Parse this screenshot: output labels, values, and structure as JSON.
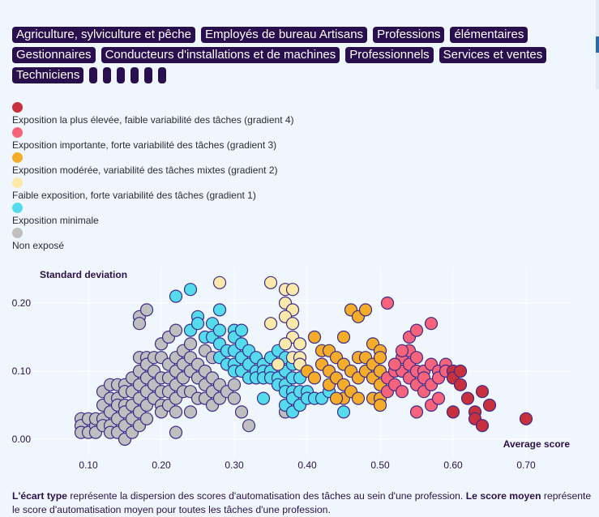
{
  "filters": [
    "Agriculture, sylviculture et pêche",
    "Employés de bureau Artisans",
    "Professions",
    "élémentaires",
    "Gestionnaires",
    "Conducteurs d'installations et de machines",
    "Professionnels",
    "Services et ventes",
    "Techniciens",
    "",
    "",
    "",
    "",
    "",
    ""
  ],
  "legend": [
    {
      "label": "Exposition la plus élevée, faible variabilité des tâches (gradient 4)",
      "color": "#c9303e"
    },
    {
      "label": "Exposition importante, forte variabilité des tâches (gradient 3)",
      "color": "#f7637a"
    },
    {
      "label": "Exposition modérée, variabilité des tâches mixtes (gradient 2)",
      "color": "#f5ac29"
    },
    {
      "label": "Faible exposition, forte variabilité des tâches (gradient 1)",
      "color": "#fde9a9"
    },
    {
      "label": "Exposition minimale",
      "color": "#55dcec"
    },
    {
      "label": "Non exposé",
      "color": "#bfbfbf"
    }
  ],
  "note": {
    "part1_bold": "L'écart type",
    "part1": " représente la dispersion des scores d'automatisation des tâches au sein d'une profession. ",
    "part2_bold": "Le score moyen",
    "part2": " représente le score d'automatisation moyen pour toutes les tâches d'une profession."
  },
  "chart_data": {
    "type": "scatter",
    "title": "",
    "xlabel": "Average score",
    "ylabel": "Standard deviation",
    "xlim": [
      0.03,
      0.76
    ],
    "ylim": [
      -0.02,
      0.25
    ],
    "xticks": [
      0.1,
      0.2,
      0.3,
      0.4,
      0.5,
      0.6,
      0.7
    ],
    "xtick_labels": [
      "0.10",
      "0.20",
      "0.30",
      "0.40",
      "0.50",
      "0.60",
      "0.70"
    ],
    "yticks": [
      0.0,
      0.1,
      0.2
    ],
    "ytick_labels": [
      "0.00",
      "0.10",
      "0.20"
    ],
    "grid": true,
    "legend_position": "top-left-above",
    "series": [
      {
        "name": "Non exposé",
        "color": "#bfbfbf",
        "points": [
          [
            0.09,
            0.03
          ],
          [
            0.09,
            0.02
          ],
          [
            0.09,
            0.01
          ],
          [
            0.1,
            0.03
          ],
          [
            0.1,
            0.01
          ],
          [
            0.11,
            0.02
          ],
          [
            0.11,
            0.03
          ],
          [
            0.11,
            0.01
          ],
          [
            0.12,
            0.03
          ],
          [
            0.12,
            0.02
          ],
          [
            0.12,
            0.05
          ],
          [
            0.12,
            0.07
          ],
          [
            0.13,
            0.08
          ],
          [
            0.13,
            0.06
          ],
          [
            0.13,
            0.04
          ],
          [
            0.13,
            0.02
          ],
          [
            0.13,
            0.01
          ],
          [
            0.14,
            0.08
          ],
          [
            0.14,
            0.06
          ],
          [
            0.14,
            0.05
          ],
          [
            0.14,
            0.03
          ],
          [
            0.14,
            0.01
          ],
          [
            0.15,
            0.08
          ],
          [
            0.15,
            0.07
          ],
          [
            0.15,
            0.05
          ],
          [
            0.15,
            0.04
          ],
          [
            0.15,
            0.02
          ],
          [
            0.15,
            0.0
          ],
          [
            0.16,
            0.09
          ],
          [
            0.16,
            0.07
          ],
          [
            0.16,
            0.05
          ],
          [
            0.16,
            0.03
          ],
          [
            0.16,
            0.01
          ],
          [
            0.17,
            0.18
          ],
          [
            0.17,
            0.17
          ],
          [
            0.17,
            0.12
          ],
          [
            0.17,
            0.1
          ],
          [
            0.17,
            0.08
          ],
          [
            0.17,
            0.06
          ],
          [
            0.17,
            0.04
          ],
          [
            0.17,
            0.02
          ],
          [
            0.18,
            0.19
          ],
          [
            0.18,
            0.12
          ],
          [
            0.18,
            0.11
          ],
          [
            0.18,
            0.09
          ],
          [
            0.18,
            0.07
          ],
          [
            0.18,
            0.05
          ],
          [
            0.18,
            0.03
          ],
          [
            0.19,
            0.12
          ],
          [
            0.19,
            0.1
          ],
          [
            0.19,
            0.08
          ],
          [
            0.19,
            0.06
          ],
          [
            0.2,
            0.14
          ],
          [
            0.2,
            0.12
          ],
          [
            0.2,
            0.09
          ],
          [
            0.2,
            0.07
          ],
          [
            0.2,
            0.05
          ],
          [
            0.2,
            0.04
          ],
          [
            0.21,
            0.15
          ],
          [
            0.21,
            0.11
          ],
          [
            0.21,
            0.09
          ],
          [
            0.21,
            0.07
          ],
          [
            0.21,
            0.05
          ],
          [
            0.22,
            0.16
          ],
          [
            0.22,
            0.12
          ],
          [
            0.22,
            0.1
          ],
          [
            0.22,
            0.08
          ],
          [
            0.22,
            0.06
          ],
          [
            0.22,
            0.04
          ],
          [
            0.22,
            0.01
          ],
          [
            0.23,
            0.13
          ],
          [
            0.23,
            0.11
          ],
          [
            0.23,
            0.09
          ],
          [
            0.23,
            0.07
          ],
          [
            0.24,
            0.14
          ],
          [
            0.24,
            0.12
          ],
          [
            0.24,
            0.1
          ],
          [
            0.24,
            0.07
          ],
          [
            0.24,
            0.04
          ],
          [
            0.25,
            0.11
          ],
          [
            0.25,
            0.09
          ],
          [
            0.25,
            0.06
          ],
          [
            0.26,
            0.13
          ],
          [
            0.26,
            0.1
          ],
          [
            0.26,
            0.08
          ],
          [
            0.26,
            0.06
          ],
          [
            0.27,
            0.12
          ],
          [
            0.27,
            0.09
          ],
          [
            0.27,
            0.07
          ],
          [
            0.27,
            0.05
          ],
          [
            0.28,
            0.08
          ],
          [
            0.28,
            0.06
          ],
          [
            0.29,
            0.07
          ],
          [
            0.3,
            0.06
          ],
          [
            0.3,
            0.08
          ],
          [
            0.31,
            0.04
          ],
          [
            0.32,
            0.02
          ],
          [
            0.37,
            0.04
          ]
        ]
      },
      {
        "name": "Exposition minimale",
        "color": "#55dcec",
        "points": [
          [
            0.22,
            0.21
          ],
          [
            0.24,
            0.22
          ],
          [
            0.24,
            0.16
          ],
          [
            0.25,
            0.18
          ],
          [
            0.25,
            0.17
          ],
          [
            0.26,
            0.15
          ],
          [
            0.27,
            0.17
          ],
          [
            0.27,
            0.15
          ],
          [
            0.28,
            0.19
          ],
          [
            0.28,
            0.16
          ],
          [
            0.28,
            0.14
          ],
          [
            0.28,
            0.12
          ],
          [
            0.29,
            0.13
          ],
          [
            0.29,
            0.11
          ],
          [
            0.3,
            0.16
          ],
          [
            0.3,
            0.15
          ],
          [
            0.3,
            0.13
          ],
          [
            0.3,
            0.11
          ],
          [
            0.3,
            0.1
          ],
          [
            0.31,
            0.16
          ],
          [
            0.31,
            0.14
          ],
          [
            0.31,
            0.12
          ],
          [
            0.31,
            0.1
          ],
          [
            0.32,
            0.13
          ],
          [
            0.32,
            0.11
          ],
          [
            0.32,
            0.09
          ],
          [
            0.33,
            0.12
          ],
          [
            0.33,
            0.1
          ],
          [
            0.33,
            0.09
          ],
          [
            0.34,
            0.11
          ],
          [
            0.34,
            0.1
          ],
          [
            0.34,
            0.09
          ],
          [
            0.34,
            0.06
          ],
          [
            0.35,
            0.12
          ],
          [
            0.35,
            0.1
          ],
          [
            0.35,
            0.09
          ],
          [
            0.36,
            0.13
          ],
          [
            0.36,
            0.11
          ],
          [
            0.36,
            0.09
          ],
          [
            0.36,
            0.08
          ],
          [
            0.37,
            0.12
          ],
          [
            0.37,
            0.1
          ],
          [
            0.37,
            0.08
          ],
          [
            0.37,
            0.07
          ],
          [
            0.37,
            0.05
          ],
          [
            0.38,
            0.11
          ],
          [
            0.38,
            0.09
          ],
          [
            0.38,
            0.07
          ],
          [
            0.38,
            0.06
          ],
          [
            0.38,
            0.04
          ],
          [
            0.39,
            0.09
          ],
          [
            0.39,
            0.07
          ],
          [
            0.39,
            0.05
          ],
          [
            0.4,
            0.07
          ],
          [
            0.4,
            0.06
          ],
          [
            0.41,
            0.06
          ],
          [
            0.42,
            0.06
          ],
          [
            0.43,
            0.07
          ],
          [
            0.45,
            0.04
          ]
        ]
      },
      {
        "name": "Faible exposition",
        "color": "#fde9a9",
        "points": [
          [
            0.28,
            0.23
          ],
          [
            0.35,
            0.23
          ],
          [
            0.37,
            0.22
          ],
          [
            0.38,
            0.22
          ],
          [
            0.37,
            0.2
          ],
          [
            0.38,
            0.19
          ],
          [
            0.37,
            0.18
          ],
          [
            0.38,
            0.17
          ],
          [
            0.35,
            0.17
          ],
          [
            0.38,
            0.15
          ],
          [
            0.37,
            0.14
          ],
          [
            0.39,
            0.14
          ],
          [
            0.38,
            0.12
          ],
          [
            0.39,
            0.12
          ],
          [
            0.36,
            0.11
          ],
          [
            0.39,
            0.11
          ]
        ]
      },
      {
        "name": "Exposition modérée",
        "color": "#f5ac29",
        "points": [
          [
            0.4,
            0.1
          ],
          [
            0.41,
            0.15
          ],
          [
            0.41,
            0.09
          ],
          [
            0.42,
            0.13
          ],
          [
            0.42,
            0.11
          ],
          [
            0.43,
            0.13
          ],
          [
            0.43,
            0.1
          ],
          [
            0.43,
            0.08
          ],
          [
            0.44,
            0.12
          ],
          [
            0.44,
            0.09
          ],
          [
            0.45,
            0.15
          ],
          [
            0.45,
            0.11
          ],
          [
            0.45,
            0.08
          ],
          [
            0.45,
            0.06
          ],
          [
            0.46,
            0.19
          ],
          [
            0.46,
            0.1
          ],
          [
            0.46,
            0.07
          ],
          [
            0.47,
            0.18
          ],
          [
            0.47,
            0.12
          ],
          [
            0.47,
            0.09
          ],
          [
            0.47,
            0.06
          ],
          [
            0.48,
            0.19
          ],
          [
            0.48,
            0.12
          ],
          [
            0.48,
            0.1
          ],
          [
            0.49,
            0.14
          ],
          [
            0.49,
            0.11
          ],
          [
            0.49,
            0.09
          ],
          [
            0.49,
            0.06
          ],
          [
            0.5,
            0.13
          ],
          [
            0.5,
            0.12
          ],
          [
            0.5,
            0.1
          ],
          [
            0.5,
            0.08
          ],
          [
            0.5,
            0.06
          ],
          [
            0.5,
            0.05
          ],
          [
            0.44,
            0.06
          ]
        ]
      },
      {
        "name": "Exposition importante",
        "color": "#f7637a",
        "points": [
          [
            0.51,
            0.2
          ],
          [
            0.51,
            0.09
          ],
          [
            0.51,
            0.07
          ],
          [
            0.52,
            0.1
          ],
          [
            0.52,
            0.08
          ],
          [
            0.53,
            0.12
          ],
          [
            0.53,
            0.1
          ],
          [
            0.53,
            0.07
          ],
          [
            0.54,
            0.15
          ],
          [
            0.54,
            0.13
          ],
          [
            0.54,
            0.11
          ],
          [
            0.54,
            0.09
          ],
          [
            0.55,
            0.16
          ],
          [
            0.55,
            0.12
          ],
          [
            0.55,
            0.1
          ],
          [
            0.55,
            0.08
          ],
          [
            0.55,
            0.04
          ],
          [
            0.56,
            0.1
          ],
          [
            0.56,
            0.09
          ],
          [
            0.56,
            0.07
          ],
          [
            0.57,
            0.17
          ],
          [
            0.57,
            0.11
          ],
          [
            0.57,
            0.08
          ],
          [
            0.57,
            0.05
          ],
          [
            0.58,
            0.1
          ],
          [
            0.58,
            0.09
          ],
          [
            0.58,
            0.06
          ],
          [
            0.59,
            0.11
          ],
          [
            0.59,
            0.1
          ],
          [
            0.52,
            0.11
          ],
          [
            0.53,
            0.13
          ]
        ]
      },
      {
        "name": "Exposition la plus élevée",
        "color": "#c9303e",
        "points": [
          [
            0.6,
            0.1
          ],
          [
            0.6,
            0.09
          ],
          [
            0.6,
            0.04
          ],
          [
            0.61,
            0.1
          ],
          [
            0.61,
            0.08
          ],
          [
            0.62,
            0.06
          ],
          [
            0.63,
            0.04
          ],
          [
            0.63,
            0.03
          ],
          [
            0.64,
            0.07
          ],
          [
            0.64,
            0.02
          ],
          [
            0.65,
            0.05
          ],
          [
            0.7,
            0.03
          ]
        ]
      }
    ]
  }
}
